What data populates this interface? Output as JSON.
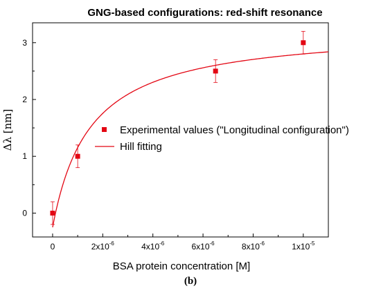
{
  "chart_data": {
    "type": "scatter",
    "title": "GNG-based configurations: red-shift resonance",
    "xlabel": "BSA protein concentration [M]",
    "ylabel": "Δλ [nm]",
    "caption": "(b)",
    "xlim": [
      -8e-07,
      1.1e-05
    ],
    "ylim": [
      -0.42,
      3.35
    ],
    "x_ticks": [
      {
        "value": 0,
        "mantissa": "0",
        "exponent": ""
      },
      {
        "value": 2e-06,
        "mantissa": "2x10",
        "exponent": "-6"
      },
      {
        "value": 4e-06,
        "mantissa": "4x10",
        "exponent": "-6"
      },
      {
        "value": 6e-06,
        "mantissa": "6x10",
        "exponent": "-6"
      },
      {
        "value": 8e-06,
        "mantissa": "8x10",
        "exponent": "-6"
      },
      {
        "value": 1e-05,
        "mantissa": "1x10",
        "exponent": "-5"
      }
    ],
    "y_ticks": [
      {
        "value": 0,
        "label": "0"
      },
      {
        "value": 1,
        "label": "1"
      },
      {
        "value": 2,
        "label": "2"
      },
      {
        "value": 3,
        "label": "3"
      }
    ],
    "series": [
      {
        "name": "Experimental values (\"Longitudinal configuration\")",
        "kind": "scatter",
        "color": "#e30613",
        "points": [
          {
            "x": 0,
            "y": 0.0,
            "err": 0.2
          },
          {
            "x": 1e-06,
            "y": 1.0,
            "err": 0.2
          },
          {
            "x": 6.5e-06,
            "y": 2.5,
            "err": 0.2
          },
          {
            "x": 1e-05,
            "y": 3.0,
            "err": 0.2
          }
        ]
      },
      {
        "name": "Hill fitting",
        "kind": "line",
        "color": "#e30613"
      }
    ],
    "legend_position": "center-right",
    "grid": false
  }
}
